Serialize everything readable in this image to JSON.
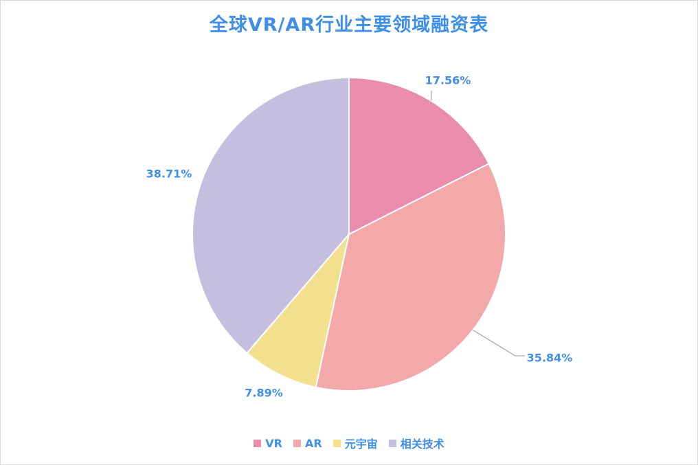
{
  "chart_data": {
    "type": "pie",
    "title": "全球VR/AR行业主要领域融资表",
    "slices": [
      {
        "name": "VR",
        "value": 17.56,
        "label": "17.56%",
        "color": "#e98cad"
      },
      {
        "name": "AR",
        "value": 35.84,
        "label": "35.84%",
        "color": "#f3a8aa"
      },
      {
        "name": "元宇宙",
        "value": 7.89,
        "label": "7.89%",
        "color": "#f3e08f"
      },
      {
        "name": "相关技术",
        "value": 38.71,
        "label": "38.71%",
        "color": "#c5bedf"
      }
    ],
    "legend_position": "bottom",
    "label_color": "#3f8fe8"
  }
}
